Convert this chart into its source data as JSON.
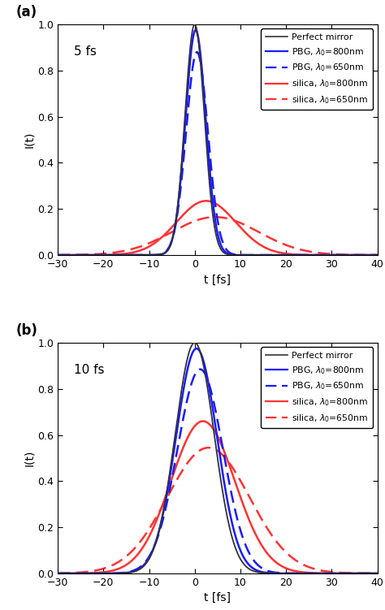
{
  "xlim": [
    -30,
    40
  ],
  "ylim": [
    0,
    1
  ],
  "xlabel": "t [fs]",
  "ylabel": "I(t)",
  "xticks": [
    -30,
    -20,
    -10,
    0,
    10,
    20,
    30,
    40
  ],
  "yticks": [
    0,
    0.2,
    0.4,
    0.6,
    0.8,
    1
  ],
  "panel_a_label": "5 fs",
  "panel_b_label": "10 fs",
  "panel_a_tag": "(a)",
  "panel_b_tag": "(b)",
  "colors": {
    "perfect_mirror": "#333333",
    "pbg": "#1a1aff",
    "silica": "#ff3333"
  },
  "legend_entries": [
    {
      "label": "Perfect mirror",
      "color": "#333333",
      "ls": "-",
      "lw": 1.2
    },
    {
      "label": "PBG, $\\lambda_0$=800nm",
      "color": "#1a1aff",
      "ls": "-",
      "lw": 1.6
    },
    {
      "label": "PBG, $\\lambda_0$=650nm",
      "color": "#1a1aff",
      "ls": "--",
      "lw": 1.6
    },
    {
      "label": "silica, $\\lambda_0$=800nm",
      "color": "#ff3333",
      "ls": "-",
      "lw": 1.6
    },
    {
      "label": "silica, $\\lambda_0$=650nm",
      "color": "#ff3333",
      "ls": "--",
      "lw": 1.6
    }
  ],
  "panel_a": {
    "perfect_mirror": {
      "sigma": 2.12,
      "shift": 0.0,
      "amp": 1.0
    },
    "pbg_800": {
      "sigma": 2.22,
      "shift": 0.2,
      "amp": 0.975
    },
    "pbg_650": {
      "sigma": 2.4,
      "shift": 0.5,
      "amp": 0.88
    },
    "silica_800": {
      "sigma": 6.5,
      "shift": 2.5,
      "amp": 0.235
    },
    "silica_650": {
      "sigma": 9.5,
      "shift": 4.5,
      "amp": 0.165
    }
  },
  "panel_b": {
    "perfect_mirror": {
      "sigma": 4.25,
      "shift": 0.0,
      "amp": 1.0
    },
    "pbg_800": {
      "sigma": 4.5,
      "shift": 0.4,
      "amp": 0.975
    },
    "pbg_650": {
      "sigma": 5.0,
      "shift": 1.2,
      "amp": 0.885
    },
    "silica_800": {
      "sigma": 7.0,
      "shift": 1.8,
      "amp": 0.66
    },
    "silica_650": {
      "sigma": 9.0,
      "shift": 3.0,
      "amp": 0.545
    }
  },
  "figsize": [
    4.74,
    7.51
  ],
  "dpi": 100,
  "background_color": "#ffffff"
}
